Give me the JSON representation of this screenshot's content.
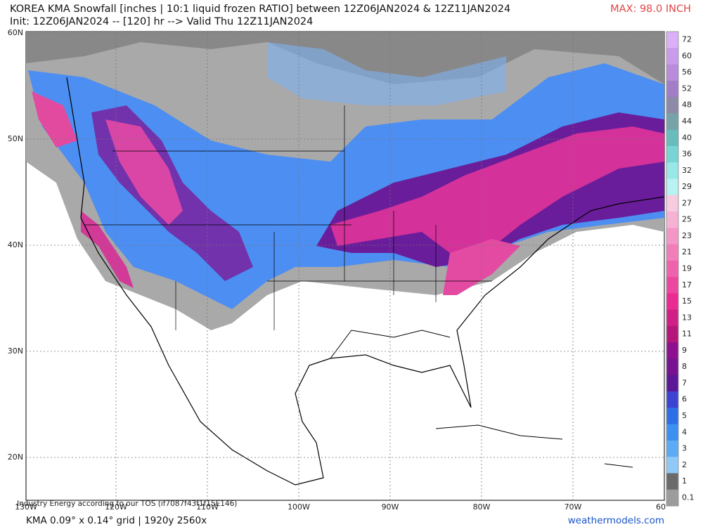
{
  "header": {
    "title": "KOREA KMA Snowfall [inches | 10:1 liquid frozen RATIO] between 12Z06JAN2024 & 12Z11JAN2024",
    "subtitle": "Init: 12Z06JAN2024 -- [120] hr --> Valid Thu 12Z11JAN2024",
    "max": "MAX: 98.0 INCH"
  },
  "map": {
    "lat_labels": [
      "60N",
      "50N",
      "40N",
      "30N",
      "20N"
    ],
    "lon_labels": [
      "130W",
      "120W",
      "110W",
      "100W",
      "90W",
      "80W",
      "70W",
      "60"
    ]
  },
  "colorbar": {
    "labels": [
      "72",
      "60",
      "56",
      "52",
      "48",
      "44",
      "40",
      "36",
      "32",
      "29",
      "27",
      "25",
      "23",
      "21",
      "19",
      "17",
      "15",
      "13",
      "11",
      "9",
      "8",
      "7",
      "6",
      "5",
      "4",
      "3",
      "2",
      "1",
      "0.1"
    ],
    "colors": [
      "#dcb0f8",
      "#c99ceb",
      "#b88bdc",
      "#a27ec6",
      "#8c8aa6",
      "#76a3a8",
      "#69bcbc",
      "#79d5d5",
      "#98e8e8",
      "#b8f2f2",
      "#f7cbe0",
      "#f5b2d2",
      "#f398c6",
      "#f17eb9",
      "#ef63ac",
      "#ec479f",
      "#e92b92",
      "#d01f86",
      "#b5167a",
      "#8d108f",
      "#761391",
      "#5b1797",
      "#3c43d3",
      "#2f6fe6",
      "#3e90f0",
      "#5cabf4",
      "#90c9f8",
      "#6a6a6a",
      "#9c9c9c"
    ]
  },
  "footer": {
    "disclaimer": "Industry Energy according to our TOS (if7087f43f1f15E146)",
    "grid": "KMA 0.09° x 0.14° grid | 1920y 2560x",
    "credit": "weathermodels.com"
  }
}
